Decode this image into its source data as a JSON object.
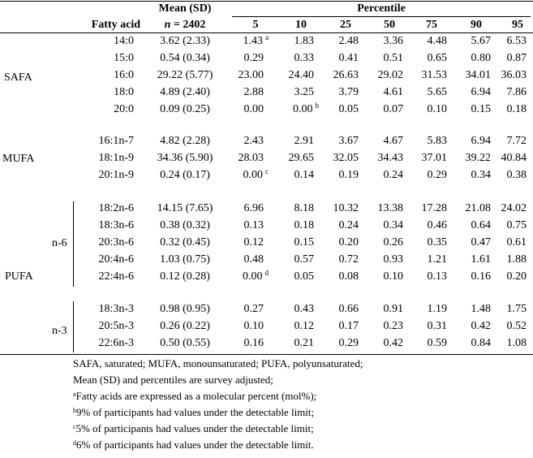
{
  "header": {
    "fatty_acid": "Fatty acid",
    "mean_sd": "Mean (SD)",
    "n_label": "n",
    "n_value": " = 2402",
    "percentile": "Percentile",
    "percentiles": [
      "5",
      "10",
      "25",
      "50",
      "75",
      "90",
      "95"
    ]
  },
  "groups": {
    "safa": "SAFA",
    "mufa": "MUFA",
    "pufa": "PUFA",
    "n6": "n-6",
    "n3": "n-3"
  },
  "rows": [
    {
      "fa": "14:0",
      "mean": "3.62 (2.33)",
      "p": [
        "1.43",
        "1.83",
        "2.48",
        "3.36",
        "4.48",
        "5.67",
        "6.53"
      ],
      "sup": {
        "0": "a"
      }
    },
    {
      "fa": "15:0",
      "mean": "0.54 (0.34)",
      "p": [
        "0.29",
        "0.33",
        "0.41",
        "0.51",
        "0.65",
        "0.80",
        "0.87"
      ]
    },
    {
      "fa": "16:0",
      "mean": "29.22 (5.77)",
      "p": [
        "23.00",
        "24.40",
        "26.63",
        "29.02",
        "31.53",
        "34.01",
        "36.03"
      ]
    },
    {
      "fa": "18:0",
      "mean": "4.89 (2.40)",
      "p": [
        "2.88",
        "3.25",
        "3.79",
        "4.61",
        "5.65",
        "6.94",
        "7.86"
      ]
    },
    {
      "fa": "20:0",
      "mean": "0.09 (0.25)",
      "p": [
        "0.00",
        "0.00",
        "0.05",
        "0.07",
        "0.10",
        "0.15",
        "0.18"
      ],
      "sup": {
        "1": "b"
      }
    },
    {
      "fa": "16:1n-7",
      "mean": "4.82 (2.28)",
      "p": [
        "2.43",
        "2.91",
        "3.67",
        "4.67",
        "5.83",
        "6.94",
        "7.72"
      ]
    },
    {
      "fa": "18:1n-9",
      "mean": "34.36 (5.90)",
      "p": [
        "28.03",
        "29.65",
        "32.05",
        "34.43",
        "37.01",
        "39.22",
        "40.84"
      ]
    },
    {
      "fa": "20:1n-9",
      "mean": "0.24 (0.17)",
      "p": [
        "0.00",
        "0.14",
        "0.19",
        "0.24",
        "0.29",
        "0.34",
        "0.38"
      ],
      "sup": {
        "0": "c"
      }
    },
    {
      "fa": "18:2n-6",
      "mean": "14.15 (7.65)",
      "p": [
        "6.96",
        "8.18",
        "10.32",
        "13.38",
        "17.28",
        "21.08",
        "24.02"
      ]
    },
    {
      "fa": "18:3n-6",
      "mean": "0.38 (0.32)",
      "p": [
        "0.13",
        "0.18",
        "0.24",
        "0.34",
        "0.46",
        "0.64",
        "0.75"
      ]
    },
    {
      "fa": "20:3n-6",
      "mean": "0.32 (0.45)",
      "p": [
        "0.12",
        "0.15",
        "0.20",
        "0.26",
        "0.35",
        "0.47",
        "0.61"
      ]
    },
    {
      "fa": "20:4n-6",
      "mean": "1.03 (0.75)",
      "p": [
        "0.48",
        "0.57",
        "0.72",
        "0.93",
        "1.21",
        "1.61",
        "1.88"
      ]
    },
    {
      "fa": "22:4n-6",
      "mean": "0.12 (0.28)",
      "p": [
        "0.00",
        "0.05",
        "0.08",
        "0.10",
        "0.13",
        "0.16",
        "0.20"
      ],
      "sup": {
        "0": "d"
      }
    },
    {
      "fa": "18:3n-3",
      "mean": "0.98 (0.95)",
      "p": [
        "0.27",
        "0.43",
        "0.66",
        "0.91",
        "1.19",
        "1.48",
        "1.75"
      ]
    },
    {
      "fa": "20:5n-3",
      "mean": "0.26 (0.22)",
      "p": [
        "0.10",
        "0.12",
        "0.17",
        "0.23",
        "0.31",
        "0.42",
        "0.52"
      ]
    },
    {
      "fa": "22:6n-3",
      "mean": "0.50 (0.55)",
      "p": [
        "0.16",
        "0.21",
        "0.29",
        "0.42",
        "0.59",
        "0.84",
        "1.08"
      ]
    }
  ],
  "footnotes": {
    "abbrev": "SAFA, saturated; MUFA, monounsaturated; PUFA, polyunsaturated;",
    "adjusted": "Mean (SD) and percentiles are survey adjusted;",
    "a_mark": "a",
    "a_text": "Fatty acids are expressed as a molecular percent (mol%);",
    "b_mark": "b",
    "b_text": "9% of participants had values under the detectable limit;",
    "c_mark": "c",
    "c_text": "5% of participants had values under the detectable limit;",
    "d_mark": "d",
    "d_text": "6% of participants had values under the detectable limit."
  }
}
